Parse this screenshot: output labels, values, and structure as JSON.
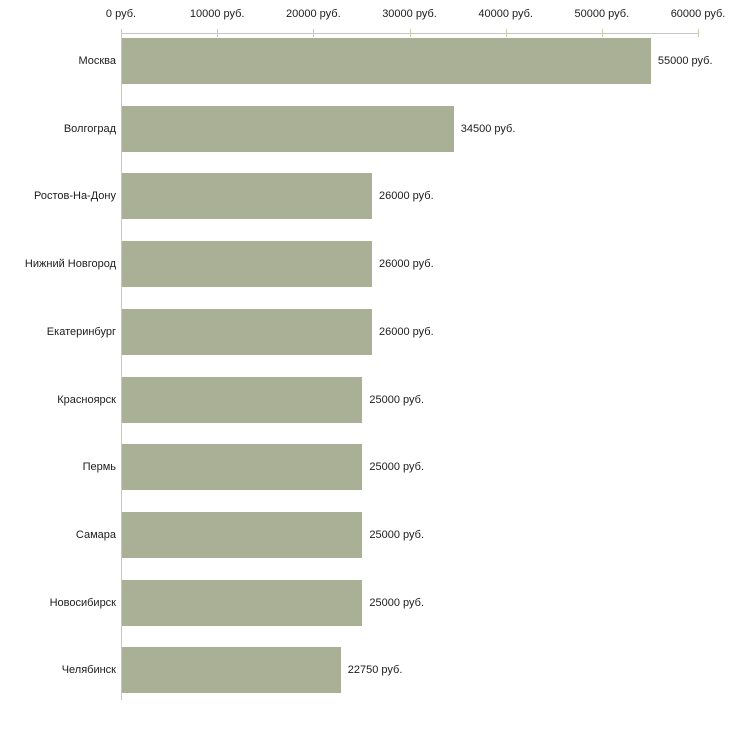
{
  "chart_data": {
    "type": "bar",
    "orientation": "horizontal",
    "categories": [
      "Москва",
      "Волгоград",
      "Ростов-На-Дону",
      "Нижний Новгород",
      "Екатеринбург",
      "Красноярск",
      "Пермь",
      "Самара",
      "Новосибирск",
      "Челябинск"
    ],
    "values": [
      55000,
      34500,
      26000,
      26000,
      26000,
      25000,
      25000,
      25000,
      25000,
      22750
    ],
    "value_labels": [
      "55000 руб.",
      "34500 руб.",
      "26000 руб.",
      "26000 руб.",
      "26000 руб.",
      "25000 руб.",
      "25000 руб.",
      "25000 руб.",
      "25000 руб.",
      "22750 руб."
    ],
    "unit": "руб.",
    "xlim": [
      0,
      60000
    ],
    "x_ticks": [
      0,
      10000,
      20000,
      30000,
      40000,
      50000,
      60000
    ],
    "x_tick_labels": [
      "0 руб.",
      "10000 руб.",
      "20000 руб.",
      "30000 руб.",
      "40000 руб.",
      "50000 руб.",
      "60000 руб."
    ],
    "x_axis_position": "top",
    "grid": false,
    "legend": false,
    "colors": {
      "bar_fill": "#a9b096",
      "axis_line": "#c6c6c6",
      "tick_mark": "#cbcfa6",
      "background": "#ffffff"
    }
  }
}
